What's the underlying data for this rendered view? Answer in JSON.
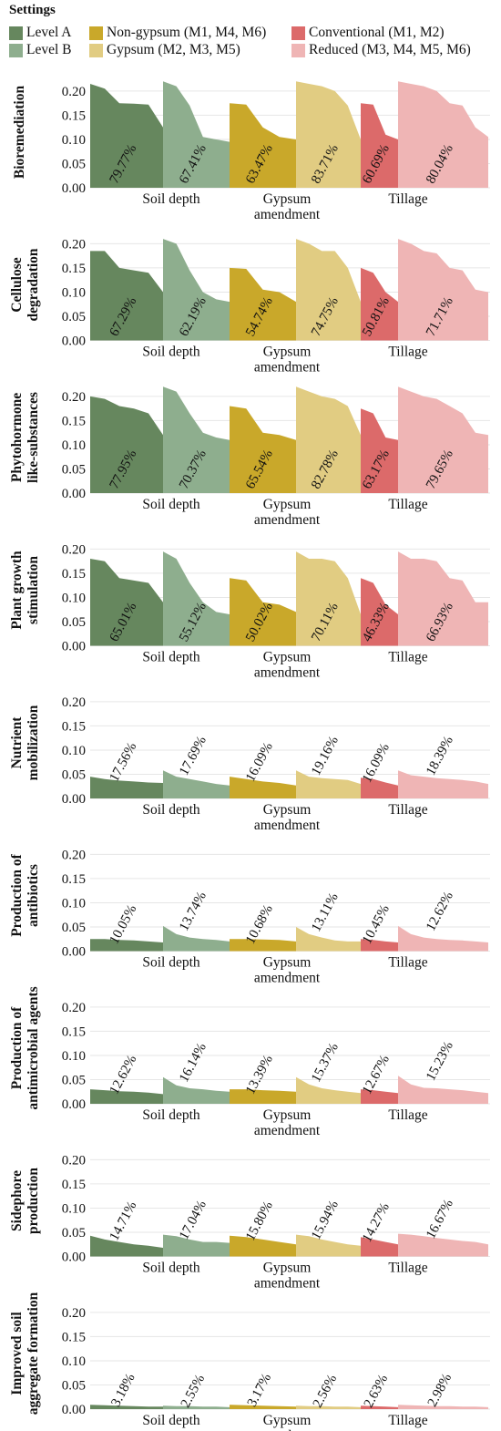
{
  "legend": {
    "title": "Settings",
    "items": [
      {
        "label": "Level A",
        "color": "#66875e"
      },
      {
        "label": "Level B",
        "color": "#8eae8e"
      },
      {
        "label": "Non-gypsum (M1, M4, M6)",
        "color": "#c9a82a"
      },
      {
        "label": "Gypsum (M2, M3, M5)",
        "color": "#e1cc82"
      },
      {
        "label": "Conventional (M1, M2)",
        "color": "#dc6a6a"
      },
      {
        "label": "Reduced (M3, M4, M5, M6)",
        "color": "#efb5b5"
      }
    ]
  },
  "chart_data": {
    "type": "area",
    "ylim": [
      0,
      0.23
    ],
    "yticks": [
      "0.00",
      "0.05",
      "0.10",
      "0.15",
      "0.20"
    ],
    "groups": [
      {
        "label": "Soil depth",
        "series": [
          "Level A",
          "Level B"
        ]
      },
      {
        "label": "Gypsum\namendment",
        "series": [
          "Non-gypsum (M1, M4, M6)",
          "Gypsum (M2, M3, M5)"
        ]
      },
      {
        "label": "Tillage",
        "series": [
          "Conventional (M1, M2)",
          "Reduced (M3, M4, M5, M6)"
        ]
      }
    ],
    "panels": [
      {
        "ylabel": "Bioremediation",
        "series": [
          {
            "values": [
              0.215,
              0.205,
              0.175,
              0.174,
              0.172,
              0.125
            ],
            "label": "79.77%"
          },
          {
            "values": [
              0.22,
              0.21,
              0.17,
              0.105,
              0.1,
              0.095
            ],
            "label": "67.41%"
          },
          {
            "values": [
              0.175,
              0.172,
              0.125,
              0.105,
              0.1
            ],
            "label": "63.47%"
          },
          {
            "values": [
              0.22,
              0.215,
              0.21,
              0.2,
              0.17,
              0.1
            ],
            "label": "83.71%"
          },
          {
            "values": [
              0.175,
              0.172,
              0.11,
              0.1
            ],
            "label": "60.69%"
          },
          {
            "values": [
              0.22,
              0.215,
              0.21,
              0.2,
              0.175,
              0.17,
              0.125,
              0.105
            ],
            "label": "80.04%"
          }
        ]
      },
      {
        "ylabel": "Cellulose\ndegradation",
        "series": [
          {
            "values": [
              0.185,
              0.185,
              0.15,
              0.145,
              0.14,
              0.1
            ],
            "label": "67.29%"
          },
          {
            "values": [
              0.21,
              0.2,
              0.145,
              0.1,
              0.085,
              0.08
            ],
            "label": "62.19%"
          },
          {
            "values": [
              0.15,
              0.148,
              0.105,
              0.1,
              0.08
            ],
            "label": "54.74%"
          },
          {
            "values": [
              0.21,
              0.2,
              0.185,
              0.185,
              0.15,
              0.08
            ],
            "label": "74.75%"
          },
          {
            "values": [
              0.15,
              0.14,
              0.1,
              0.08
            ],
            "label": "50.81%"
          },
          {
            "values": [
              0.21,
              0.2,
              0.185,
              0.18,
              0.15,
              0.145,
              0.105,
              0.1
            ],
            "label": "71.71%"
          }
        ]
      },
      {
        "ylabel": "Phytohormone\nlike-substances",
        "series": [
          {
            "values": [
              0.2,
              0.195,
              0.18,
              0.175,
              0.165,
              0.12
            ],
            "label": "77.95%"
          },
          {
            "values": [
              0.22,
              0.21,
              0.165,
              0.125,
              0.115,
              0.11
            ],
            "label": "70.37%"
          },
          {
            "values": [
              0.18,
              0.175,
              0.125,
              0.12,
              0.11
            ],
            "label": "65.54%"
          },
          {
            "values": [
              0.22,
              0.21,
              0.2,
              0.195,
              0.18,
              0.12
            ],
            "label": "82.78%"
          },
          {
            "values": [
              0.175,
              0.165,
              0.115,
              0.11
            ],
            "label": "63.17%"
          },
          {
            "values": [
              0.22,
              0.21,
              0.2,
              0.195,
              0.18,
              0.165,
              0.125,
              0.12
            ],
            "label": "79.65%"
          }
        ]
      },
      {
        "ylabel": "Plant growth\nstimulation",
        "series": [
          {
            "values": [
              0.18,
              0.175,
              0.14,
              0.135,
              0.13,
              0.09
            ],
            "label": "65.01%"
          },
          {
            "values": [
              0.195,
              0.18,
              0.13,
              0.09,
              0.07,
              0.065
            ],
            "label": "55.12%"
          },
          {
            "values": [
              0.14,
              0.135,
              0.09,
              0.085,
              0.07
            ],
            "label": "50.02%"
          },
          {
            "values": [
              0.195,
              0.18,
              0.18,
              0.175,
              0.14,
              0.065
            ],
            "label": "70.11%"
          },
          {
            "values": [
              0.14,
              0.13,
              0.085,
              0.065
            ],
            "label": "46.33%"
          },
          {
            "values": [
              0.195,
              0.18,
              0.18,
              0.175,
              0.14,
              0.135,
              0.09,
              0.09
            ],
            "label": "66.93%"
          }
        ]
      },
      {
        "ylabel": "Nutrient\nmobilization",
        "series": [
          {
            "values": [
              0.045,
              0.04,
              0.037,
              0.035,
              0.033,
              0.032
            ],
            "label": "17.56%"
          },
          {
            "values": [
              0.058,
              0.045,
              0.04,
              0.035,
              0.03,
              0.027
            ],
            "label": "17.69%"
          },
          {
            "values": [
              0.045,
              0.04,
              0.035,
              0.032,
              0.027
            ],
            "label": "16.09%"
          },
          {
            "values": [
              0.058,
              0.045,
              0.042,
              0.04,
              0.038,
              0.03
            ],
            "label": "19.16%"
          },
          {
            "values": [
              0.043,
              0.04,
              0.033,
              0.027
            ],
            "label": "16.09%"
          },
          {
            "values": [
              0.058,
              0.048,
              0.045,
              0.042,
              0.04,
              0.038,
              0.035,
              0.03
            ],
            "label": "18.39%"
          }
        ]
      },
      {
        "ylabel": "Production of\nantibiotics",
        "series": [
          {
            "values": [
              0.025,
              0.025,
              0.023,
              0.022,
              0.02,
              0.018
            ],
            "label": "10.05%"
          },
          {
            "values": [
              0.052,
              0.035,
              0.028,
              0.025,
              0.023,
              0.02
            ],
            "label": "13.74%"
          },
          {
            "values": [
              0.025,
              0.025,
              0.024,
              0.023,
              0.02
            ],
            "label": "10.68%"
          },
          {
            "values": [
              0.05,
              0.035,
              0.028,
              0.022,
              0.02,
              0.02
            ],
            "label": "13.11%"
          },
          {
            "values": [
              0.025,
              0.023,
              0.02,
              0.018
            ],
            "label": "10.45%"
          },
          {
            "values": [
              0.052,
              0.035,
              0.028,
              0.025,
              0.023,
              0.022,
              0.02,
              0.018
            ],
            "label": "12.62%"
          }
        ]
      },
      {
        "ylabel": "Production of\nantimicrobial agents",
        "series": [
          {
            "values": [
              0.03,
              0.028,
              0.026,
              0.025,
              0.023,
              0.02
            ],
            "label": "12.62%"
          },
          {
            "values": [
              0.055,
              0.038,
              0.032,
              0.03,
              0.027,
              0.025
            ],
            "label": "16.14%"
          },
          {
            "values": [
              0.03,
              0.03,
              0.028,
              0.027,
              0.025
            ],
            "label": "13.39%"
          },
          {
            "values": [
              0.055,
              0.04,
              0.032,
              0.028,
              0.025,
              0.022
            ],
            "label": "15.37%"
          },
          {
            "values": [
              0.03,
              0.028,
              0.025,
              0.022
            ],
            "label": "12.67%"
          },
          {
            "values": [
              0.058,
              0.04,
              0.033,
              0.032,
              0.03,
              0.028,
              0.025,
              0.022
            ],
            "label": "15.23%"
          }
        ]
      },
      {
        "ylabel": "Sidephore\nproduction",
        "series": [
          {
            "values": [
              0.043,
              0.035,
              0.03,
              0.025,
              0.022,
              0.018
            ],
            "label": "14.71%"
          },
          {
            "values": [
              0.045,
              0.042,
              0.035,
              0.03,
              0.03,
              0.028
            ],
            "label": "17.04%"
          },
          {
            "values": [
              0.043,
              0.04,
              0.035,
              0.03,
              0.025
            ],
            "label": "15.80%"
          },
          {
            "values": [
              0.045,
              0.042,
              0.035,
              0.03,
              0.025,
              0.022
            ],
            "label": "15.94%"
          },
          {
            "values": [
              0.04,
              0.035,
              0.03,
              0.025
            ],
            "label": "14.27%"
          },
          {
            "values": [
              0.047,
              0.045,
              0.042,
              0.038,
              0.035,
              0.032,
              0.03,
              0.025
            ],
            "label": "16.67%"
          }
        ]
      },
      {
        "ylabel": "Improved soil\naggregate formation",
        "series": [
          {
            "values": [
              0.009,
              0.008,
              0.007,
              0.006,
              0.005,
              0.005
            ],
            "label": "3.18%"
          },
          {
            "values": [
              0.007,
              0.006,
              0.006,
              0.005,
              0.005,
              0.004
            ],
            "label": "2.55%"
          },
          {
            "values": [
              0.009,
              0.008,
              0.007,
              0.006,
              0.005
            ],
            "label": "3.17%"
          },
          {
            "values": [
              0.007,
              0.006,
              0.006,
              0.005,
              0.005,
              0.004
            ],
            "label": "2.56%"
          },
          {
            "values": [
              0.007,
              0.006,
              0.005,
              0.004
            ],
            "label": "2.63%"
          },
          {
            "values": [
              0.009,
              0.008,
              0.007,
              0.006,
              0.006,
              0.005,
              0.005,
              0.004
            ],
            "label": "2.98%"
          }
        ]
      }
    ]
  }
}
